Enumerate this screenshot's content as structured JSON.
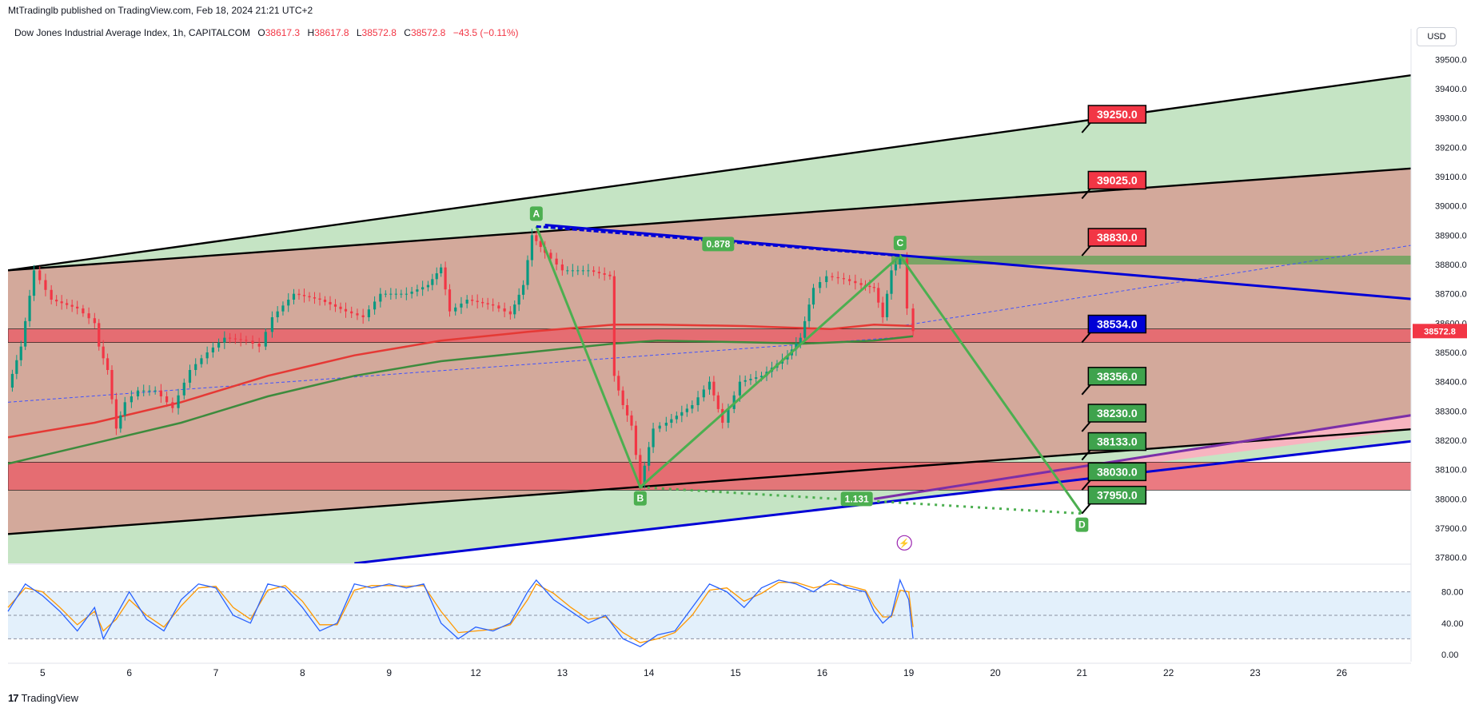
{
  "header": {
    "publisher": "MtTradinglb published on TradingView.com, Feb 18, 2024 21:21 UTC+2",
    "symbol": "Dow Jones Industrial Average Index, 1h, CAPITALCOM",
    "open_label": "O",
    "open": "38617.3",
    "high_label": "H",
    "high": "38617.8",
    "low_label": "L",
    "low": "38572.8",
    "close_label": "C",
    "close": "38572.8",
    "change": "−43.5 (−0.11%)",
    "currency": "USD"
  },
  "footer": {
    "logo": "17",
    "brand": "TradingView"
  },
  "colors": {
    "up": "#089981",
    "down": "#f23645",
    "fill_brown": "#d3a99b",
    "fill_green": "#c5e4c4",
    "red_zone": "#e8636b",
    "pattern": "#4caf50",
    "blue": "#0000d6",
    "purple": "#7b2fa8"
  },
  "chart_data": {
    "type": "candlestick",
    "symbol": "Dow Jones Industrial Average Index",
    "interval": "1h",
    "last_price": 38572.8,
    "x_ticks": [
      {
        "label": "5",
        "t": 0.4
      },
      {
        "label": "6",
        "t": 1.4
      },
      {
        "label": "7",
        "t": 2.4
      },
      {
        "label": "8",
        "t": 3.4
      },
      {
        "label": "9",
        "t": 4.4
      },
      {
        "label": "12",
        "t": 5.4
      },
      {
        "label": "13",
        "t": 6.4
      },
      {
        "label": "14",
        "t": 7.4
      },
      {
        "label": "15",
        "t": 8.4
      },
      {
        "label": "16",
        "t": 9.4
      },
      {
        "label": "19",
        "t": 10.4
      },
      {
        "label": "20",
        "t": 11.4
      },
      {
        "label": "21",
        "t": 12.4
      },
      {
        "label": "22",
        "t": 13.4
      },
      {
        "label": "23",
        "t": 14.4
      },
      {
        "label": "26",
        "t": 15.4
      }
    ],
    "y_ticks": [
      37800,
      37900,
      38000,
      38100,
      38200,
      38300,
      38400,
      38500,
      38600,
      38700,
      38800,
      38900,
      39000,
      39100,
      39200,
      39300,
      39400,
      39500
    ],
    "y_range": [
      37780,
      39550
    ],
    "x_range": [
      0,
      16.2
    ],
    "price_path": [
      [
        0.0,
        38380
      ],
      [
        0.15,
        38520
      ],
      [
        0.3,
        38780
      ],
      [
        0.5,
        38680
      ],
      [
        0.8,
        38650
      ],
      [
        1.0,
        38600
      ],
      [
        1.05,
        38520
      ],
      [
        1.15,
        38440
      ],
      [
        1.25,
        38240
      ],
      [
        1.35,
        38330
      ],
      [
        1.5,
        38370
      ],
      [
        1.7,
        38370
      ],
      [
        1.9,
        38310
      ],
      [
        2.1,
        38440
      ],
      [
        2.3,
        38500
      ],
      [
        2.5,
        38550
      ],
      [
        2.75,
        38540
      ],
      [
        2.9,
        38520
      ],
      [
        3.05,
        38620
      ],
      [
        3.3,
        38700
      ],
      [
        3.6,
        38680
      ],
      [
        3.9,
        38640
      ],
      [
        4.1,
        38620
      ],
      [
        4.3,
        38700
      ],
      [
        4.6,
        38700
      ],
      [
        4.85,
        38730
      ],
      [
        5.0,
        38790
      ],
      [
        5.1,
        38640
      ],
      [
        5.3,
        38680
      ],
      [
        5.6,
        38660
      ],
      [
        5.8,
        38630
      ],
      [
        5.95,
        38730
      ],
      [
        6.05,
        38900
      ],
      [
        6.2,
        38840
      ],
      [
        6.4,
        38780
      ],
      [
        6.7,
        38780
      ],
      [
        6.95,
        38760
      ],
      [
        7.0,
        38420
      ],
      [
        7.1,
        38320
      ],
      [
        7.2,
        38250
      ],
      [
        7.3,
        38050
      ],
      [
        7.45,
        38240
      ],
      [
        7.6,
        38260
      ],
      [
        7.9,
        38320
      ],
      [
        8.1,
        38400
      ],
      [
        8.25,
        38260
      ],
      [
        8.45,
        38400
      ],
      [
        8.7,
        38420
      ],
      [
        9.0,
        38490
      ],
      [
        9.15,
        38550
      ],
      [
        9.3,
        38720
      ],
      [
        9.45,
        38760
      ],
      [
        9.65,
        38750
      ],
      [
        9.85,
        38730
      ],
      [
        10.0,
        38720
      ],
      [
        10.1,
        38620
      ],
      [
        10.2,
        38780
      ],
      [
        10.3,
        38820
      ],
      [
        10.38,
        38650
      ],
      [
        10.45,
        38572.8
      ]
    ],
    "sma_red": [
      [
        0.0,
        38210
      ],
      [
        1.0,
        38260
      ],
      [
        2.0,
        38330
      ],
      [
        3.0,
        38420
      ],
      [
        4.0,
        38490
      ],
      [
        5.0,
        38540
      ],
      [
        6.0,
        38570
      ],
      [
        7.0,
        38595
      ],
      [
        7.5,
        38595
      ],
      [
        8.5,
        38590
      ],
      [
        9.5,
        38580
      ],
      [
        10.0,
        38595
      ],
      [
        10.45,
        38590
      ]
    ],
    "sma_green": [
      [
        0.0,
        38120
      ],
      [
        1.0,
        38190
      ],
      [
        2.0,
        38260
      ],
      [
        3.0,
        38350
      ],
      [
        4.0,
        38420
      ],
      [
        5.0,
        38470
      ],
      [
        6.0,
        38500
      ],
      [
        7.0,
        38530
      ],
      [
        7.5,
        38540
      ],
      [
        8.5,
        38535
      ],
      [
        9.2,
        38530
      ],
      [
        10.0,
        38540
      ],
      [
        10.45,
        38555
      ]
    ],
    "bands": {
      "upper_outer": [
        [
          0.0,
          38780
        ],
        [
          16.3,
          39450
        ]
      ],
      "upper_inner": [
        [
          0.0,
          38780
        ],
        [
          16.3,
          39130
        ]
      ],
      "lower_inner": [
        [
          0.0,
          37880
        ],
        [
          16.3,
          38240
        ]
      ],
      "blue_support": [
        [
          4.0,
          37780
        ],
        [
          16.3,
          38200
        ]
      ]
    },
    "red_zones": [
      {
        "from": 38534,
        "to": 38580
      },
      {
        "from": 38030,
        "to": 38125
      }
    ],
    "green_zone": {
      "from": 38800,
      "to": 38830,
      "t_start": 10.2
    },
    "harmonic": {
      "points": [
        {
          "label": "A",
          "t": 6.1,
          "v": 38930
        },
        {
          "label": "B",
          "t": 7.3,
          "v": 38040
        },
        {
          "label": "C",
          "t": 10.3,
          "v": 38830
        },
        {
          "label": "D",
          "t": 12.4,
          "v": 37950
        }
      ],
      "ratios": [
        {
          "text": "0.878",
          "t": 8.2,
          "v": 38870
        },
        {
          "text": "1.131",
          "t": 9.8,
          "v": 38000
        }
      ]
    },
    "blue_resistance": [
      [
        6.2,
        38935
      ],
      [
        16.3,
        38680
      ]
    ],
    "dashed_channel_top": [
      [
        10.3,
        38590
      ],
      [
        16.3,
        38870
      ]
    ],
    "dashed_channel_bottom": [
      [
        0.0,
        38330
      ],
      [
        10.45,
        38555
      ]
    ],
    "purple_line": [
      [
        10.0,
        38000
      ],
      [
        16.3,
        38290
      ]
    ],
    "targets": [
      {
        "text": "39250.0",
        "v": 39250,
        "color": "red"
      },
      {
        "text": "39025.0",
        "v": 39025,
        "color": "red"
      },
      {
        "text": "38830.0",
        "v": 38830,
        "color": "red"
      },
      {
        "text": "38534.0",
        "v": 38534,
        "color": "blue"
      },
      {
        "text": "38356.0",
        "v": 38356,
        "color": "green"
      },
      {
        "text": "38230.0",
        "v": 38230,
        "color": "green"
      },
      {
        "text": "38133.0",
        "v": 38133,
        "color": "green"
      },
      {
        "text": "38030.0",
        "v": 38030,
        "color": "green"
      },
      {
        "text": "37950.0",
        "v": 37950,
        "color": "green"
      }
    ],
    "price_label": "38572.8",
    "stochastic": {
      "y_ticks": [
        0,
        40,
        80
      ],
      "y_tick_labels": [
        "0.00",
        "40.00",
        "80.00"
      ],
      "upper": 80,
      "lower": 20,
      "mid": 50,
      "k": [
        [
          0.0,
          55
        ],
        [
          0.2,
          90
        ],
        [
          0.4,
          75
        ],
        [
          0.6,
          55
        ],
        [
          0.8,
          30
        ],
        [
          1.0,
          60
        ],
        [
          1.1,
          20
        ],
        [
          1.25,
          50
        ],
        [
          1.4,
          80
        ],
        [
          1.6,
          45
        ],
        [
          1.8,
          30
        ],
        [
          2.0,
          70
        ],
        [
          2.2,
          90
        ],
        [
          2.4,
          85
        ],
        [
          2.6,
          50
        ],
        [
          2.8,
          40
        ],
        [
          3.0,
          90
        ],
        [
          3.2,
          85
        ],
        [
          3.4,
          60
        ],
        [
          3.6,
          30
        ],
        [
          3.8,
          40
        ],
        [
          4.0,
          90
        ],
        [
          4.2,
          85
        ],
        [
          4.4,
          90
        ],
        [
          4.6,
          85
        ],
        [
          4.8,
          90
        ],
        [
          5.0,
          40
        ],
        [
          5.2,
          20
        ],
        [
          5.4,
          35
        ],
        [
          5.6,
          30
        ],
        [
          5.8,
          40
        ],
        [
          6.0,
          80
        ],
        [
          6.1,
          95
        ],
        [
          6.3,
          70
        ],
        [
          6.5,
          55
        ],
        [
          6.7,
          40
        ],
        [
          6.9,
          50
        ],
        [
          7.1,
          20
        ],
        [
          7.3,
          10
        ],
        [
          7.5,
          25
        ],
        [
          7.7,
          30
        ],
        [
          7.9,
          60
        ],
        [
          8.1,
          90
        ],
        [
          8.3,
          80
        ],
        [
          8.5,
          60
        ],
        [
          8.7,
          85
        ],
        [
          8.9,
          95
        ],
        [
          9.1,
          90
        ],
        [
          9.3,
          80
        ],
        [
          9.5,
          95
        ],
        [
          9.7,
          85
        ],
        [
          9.9,
          80
        ],
        [
          10.0,
          55
        ],
        [
          10.1,
          40
        ],
        [
          10.2,
          50
        ],
        [
          10.3,
          95
        ],
        [
          10.4,
          70
        ],
        [
          10.45,
          20
        ]
      ],
      "d": [
        [
          0.0,
          60
        ],
        [
          0.2,
          85
        ],
        [
          0.4,
          80
        ],
        [
          0.6,
          60
        ],
        [
          0.8,
          38
        ],
        [
          1.0,
          55
        ],
        [
          1.1,
          30
        ],
        [
          1.25,
          45
        ],
        [
          1.4,
          70
        ],
        [
          1.6,
          50
        ],
        [
          1.8,
          35
        ],
        [
          2.0,
          62
        ],
        [
          2.2,
          85
        ],
        [
          2.4,
          87
        ],
        [
          2.6,
          60
        ],
        [
          2.8,
          45
        ],
        [
          3.0,
          82
        ],
        [
          3.2,
          88
        ],
        [
          3.4,
          68
        ],
        [
          3.6,
          38
        ],
        [
          3.8,
          38
        ],
        [
          4.0,
          82
        ],
        [
          4.2,
          88
        ],
        [
          4.4,
          88
        ],
        [
          4.6,
          87
        ],
        [
          4.8,
          88
        ],
        [
          5.0,
          55
        ],
        [
          5.2,
          28
        ],
        [
          5.4,
          30
        ],
        [
          5.6,
          32
        ],
        [
          5.8,
          38
        ],
        [
          6.0,
          70
        ],
        [
          6.1,
          90
        ],
        [
          6.3,
          78
        ],
        [
          6.5,
          60
        ],
        [
          6.7,
          45
        ],
        [
          6.9,
          48
        ],
        [
          7.1,
          28
        ],
        [
          7.3,
          15
        ],
        [
          7.5,
          20
        ],
        [
          7.7,
          28
        ],
        [
          7.9,
          50
        ],
        [
          8.1,
          82
        ],
        [
          8.3,
          85
        ],
        [
          8.5,
          68
        ],
        [
          8.7,
          78
        ],
        [
          8.9,
          92
        ],
        [
          9.1,
          92
        ],
        [
          9.3,
          85
        ],
        [
          9.5,
          90
        ],
        [
          9.7,
          88
        ],
        [
          9.9,
          82
        ],
        [
          10.0,
          62
        ],
        [
          10.1,
          48
        ],
        [
          10.2,
          48
        ],
        [
          10.3,
          82
        ],
        [
          10.4,
          80
        ],
        [
          10.45,
          35
        ]
      ]
    }
  }
}
